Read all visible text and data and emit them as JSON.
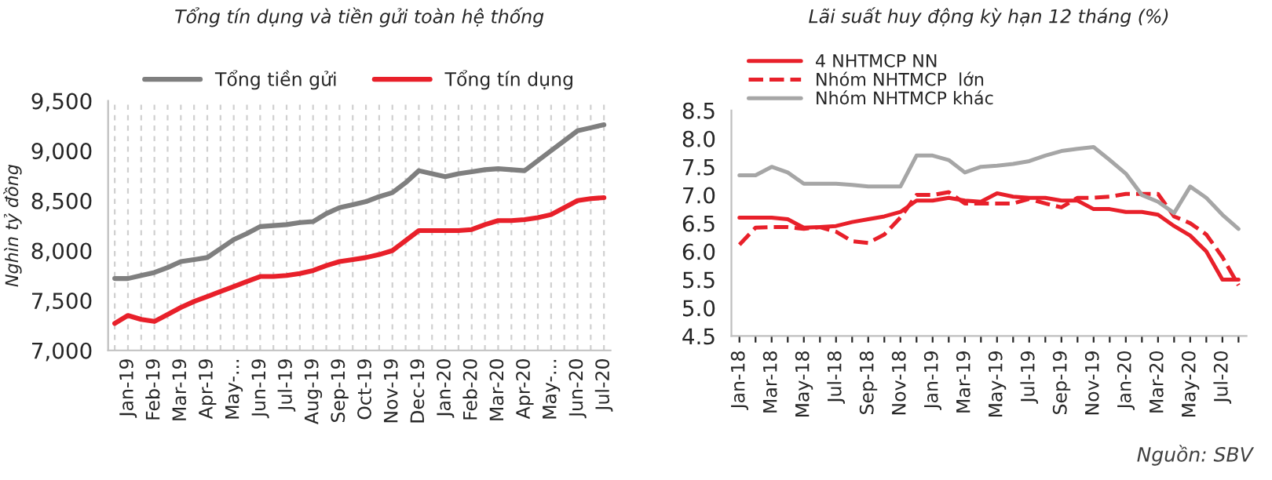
{
  "chart_data": [
    {
      "type": "line",
      "title": "Tổng tín dụng và tiền gửi toàn hệ thống",
      "ylabel": "Nghìn tỷ đồng",
      "categories": [
        null,
        "Jan-19",
        null,
        "Feb-19",
        null,
        "Mar-19",
        null,
        "Apr-19",
        null,
        "May-...",
        null,
        "Jun-19",
        null,
        "Jul-19",
        null,
        "Aug-19",
        null,
        "Sep-19",
        null,
        "Oct-19",
        null,
        "Nov-19",
        null,
        "Dec-19",
        null,
        "Jan-20",
        null,
        "Feb-20",
        null,
        "Mar-20",
        null,
        "Apr-20",
        null,
        "May-...",
        null,
        "Jun-20",
        null,
        "Jul-20"
      ],
      "series": [
        {
          "name": "Tổng tiền gửi",
          "color": "#7f7f7f",
          "values": [
            7720,
            7720,
            7750,
            7780,
            7830,
            7890,
            7910,
            7930,
            8020,
            8110,
            8170,
            8240,
            8250,
            8260,
            8280,
            8290,
            8370,
            8430,
            8460,
            8490,
            8540,
            8580,
            8680,
            8800,
            8770,
            8740,
            8770,
            8790,
            8810,
            8820,
            8810,
            8800,
            8900,
            9000,
            9100,
            9200,
            9230,
            9260
          ]
        },
        {
          "name": "Tổng tín dụng",
          "color": "#e8202a",
          "values": [
            7270,
            7350,
            7310,
            7290,
            7360,
            7430,
            7490,
            7540,
            7590,
            7640,
            7690,
            7740,
            7740,
            7750,
            7770,
            7800,
            7850,
            7890,
            7910,
            7930,
            7960,
            8000,
            8100,
            8200,
            8200,
            8200,
            8200,
            8210,
            8260,
            8300,
            8300,
            8310,
            8330,
            8360,
            8430,
            8500,
            8520,
            8530
          ]
        }
      ],
      "ylim": [
        7000,
        9500
      ],
      "yticks": [
        {
          "value": 7000,
          "label": "7,000"
        },
        {
          "value": 7500,
          "label": "7,500"
        },
        {
          "value": 8000,
          "label": "8,000"
        },
        {
          "value": 8500,
          "label": "8,500"
        },
        {
          "value": 9000,
          "label": "9,000"
        },
        {
          "value": 9500,
          "label": "9,500"
        }
      ],
      "grid": "x",
      "legend": "top"
    },
    {
      "type": "line",
      "title": "Lãi suất huy động kỳ hạn 12 tháng (%)",
      "categories": [
        "Jan-18",
        null,
        "Mar-18",
        null,
        "May-18",
        null,
        "Jul-18",
        null,
        "Sep-18",
        null,
        "Nov-18",
        null,
        "Jan-19",
        null,
        "Mar-19",
        null,
        "May-19",
        null,
        "Jul-19",
        null,
        "Sep-19",
        null,
        "Nov-19",
        null,
        "Jan-20",
        null,
        "Mar-20",
        null,
        "May-20",
        null,
        "Jul-20",
        null
      ],
      "series": [
        {
          "name": "4 NHTMCP NN",
          "color": "#e8202a",
          "line_style": "solid",
          "values": [
            6.6,
            6.6,
            6.6,
            6.57,
            6.42,
            6.43,
            6.45,
            6.52,
            6.57,
            6.62,
            6.7,
            6.9,
            6.9,
            6.95,
            6.9,
            6.88,
            7.03,
            6.97,
            6.95,
            6.95,
            6.9,
            6.9,
            6.75,
            6.75,
            6.7,
            6.7,
            6.65,
            6.45,
            6.28,
            6.0,
            5.5,
            5.5
          ]
        },
        {
          "name": "Nhóm NHTMCP  lớn",
          "color": "#e8202a",
          "line_style": "dashed",
          "values": [
            6.12,
            6.42,
            6.43,
            6.43,
            6.4,
            6.43,
            6.35,
            6.18,
            6.15,
            6.3,
            6.6,
            7.0,
            7.0,
            7.05,
            6.85,
            6.85,
            6.85,
            6.85,
            6.93,
            6.85,
            6.78,
            6.95,
            6.95,
            6.97,
            7.02,
            7.02,
            7.02,
            6.62,
            6.5,
            6.3,
            5.9,
            5.4
          ]
        },
        {
          "name": "Nhóm NHTMCP khác",
          "color": "#a6a6a6",
          "line_style": "solid",
          "values": [
            7.35,
            7.35,
            7.5,
            7.4,
            7.2,
            7.2,
            7.2,
            7.18,
            7.15,
            7.15,
            7.15,
            7.7,
            7.7,
            7.62,
            7.4,
            7.5,
            7.52,
            7.55,
            7.6,
            7.7,
            7.78,
            7.82,
            7.85,
            7.62,
            7.38,
            7.0,
            6.88,
            6.68,
            7.15,
            6.95,
            6.65,
            6.4
          ]
        }
      ],
      "ylim": [
        4.5,
        8.5
      ],
      "yticks": [
        {
          "value": 4.5,
          "label": "4.5"
        },
        {
          "value": 5.0,
          "label": "5.0"
        },
        {
          "value": 5.5,
          "label": "5.5"
        },
        {
          "value": 6.0,
          "label": "6.0"
        },
        {
          "value": 6.5,
          "label": "6.5"
        },
        {
          "value": 7.0,
          "label": "7.0"
        },
        {
          "value": 7.5,
          "label": "7.5"
        },
        {
          "value": 8.0,
          "label": "8.0"
        },
        {
          "value": 8.5,
          "label": "8.5"
        }
      ],
      "grid": false,
      "legend": "top left",
      "annotations": [
        "Nguồn: SBV"
      ]
    }
  ]
}
